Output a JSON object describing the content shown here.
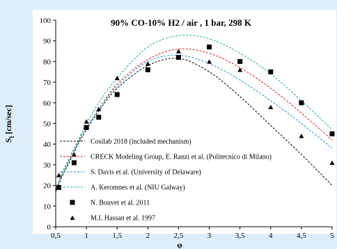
{
  "chart_data": {
    "type": "line",
    "title": "90% CO-10% H2 / air , 1 bar, 298 K",
    "xlabel": "φ",
    "ylabel": "S",
    "ylabel_sub": "l",
    "ylabel_unit": " [cm/sec]",
    "xlim": [
      0.5,
      5
    ],
    "ylim": [
      0,
      100
    ],
    "x_ticks": [
      0.5,
      1,
      1.5,
      2,
      2.5,
      3,
      3.5,
      4,
      4.5,
      5
    ],
    "x_tick_labels": [
      "0,5",
      "1",
      "1,5",
      "2",
      "2,5",
      "3",
      "3,5",
      "4",
      "4,5",
      "5"
    ],
    "y_ticks": [
      0,
      10,
      20,
      30,
      40,
      50,
      60,
      70,
      80,
      90,
      100
    ],
    "y_tick_labels": [
      "0",
      "10",
      "20",
      "30",
      "40",
      "50",
      "60",
      "70",
      "80",
      "90",
      "100"
    ],
    "legend_position": "bottom-left",
    "series": [
      {
        "name": "Cosilab 2018 (included mechanism)",
        "kind": "line",
        "color": "#000000",
        "x": [
          0.5,
          0.6,
          0.7,
          0.8,
          0.9,
          1,
          1.2,
          1.5,
          2,
          2.5,
          3,
          3.5,
          4,
          4.5,
          5
        ],
        "y": [
          17,
          24,
          30,
          36,
          42,
          47,
          56,
          67,
          78,
          81.5,
          75,
          63,
          49,
          35,
          20
        ]
      },
      {
        "name": "CRECK Modeling Group, E. Ranzi et al. (Politecnico di Milano)",
        "kind": "line",
        "color": "#e8161b",
        "x": [
          0.5,
          0.6,
          0.7,
          0.8,
          0.9,
          1,
          1.2,
          1.5,
          2,
          2.5,
          3,
          3.5,
          4,
          4.5,
          5
        ],
        "y": [
          18,
          25,
          31,
          37,
          43,
          48,
          57,
          69,
          81,
          86,
          84,
          77,
          67,
          55,
          42
        ]
      },
      {
        "name": "S. Davis et al. (University of Delaware)",
        "kind": "line",
        "color": "#1b98c9",
        "x": [
          0.5,
          0.6,
          0.7,
          0.8,
          0.9,
          1,
          1.2,
          1.5,
          2,
          2.5,
          3,
          3.5,
          4,
          4.5,
          5
        ],
        "y": [
          18,
          25,
          31,
          37,
          43,
          48,
          57,
          68,
          80,
          83,
          79,
          71,
          61,
          50,
          38
        ]
      },
      {
        "name": "A. Keromnes et al. (NIU Galway)",
        "kind": "line",
        "color": "#29a877",
        "x": [
          0.5,
          0.6,
          0.7,
          0.8,
          0.9,
          1,
          1.2,
          1.5,
          2,
          2.5,
          3,
          3.5,
          4,
          4.5,
          5
        ],
        "y": [
          18,
          26,
          32,
          38,
          44,
          50,
          60,
          72,
          87,
          92.5,
          91,
          84,
          74,
          61,
          47
        ]
      },
      {
        "name": "N. Bouvet et al. 2011",
        "kind": "marker",
        "marker": "square",
        "color": "#000000",
        "x": [
          0.55,
          0.8,
          1.0,
          1.2,
          1.5,
          2.0,
          2.5,
          3.0,
          3.5,
          4.0,
          4.5,
          5.0
        ],
        "y": [
          19,
          31,
          48,
          53,
          64,
          76,
          82,
          87,
          80,
          75,
          60,
          45
        ]
      },
      {
        "name": "M.I. Hassan et al. 1997",
        "kind": "marker",
        "marker": "triangle",
        "color": "#000000",
        "x": [
          0.55,
          0.8,
          1.0,
          1.2,
          1.5,
          2.0,
          2.5,
          3.0,
          3.5,
          4.0,
          4.5,
          5.0
        ],
        "y": [
          25,
          35,
          51,
          57,
          72,
          79,
          85,
          80,
          76,
          58,
          44,
          31
        ]
      }
    ]
  }
}
